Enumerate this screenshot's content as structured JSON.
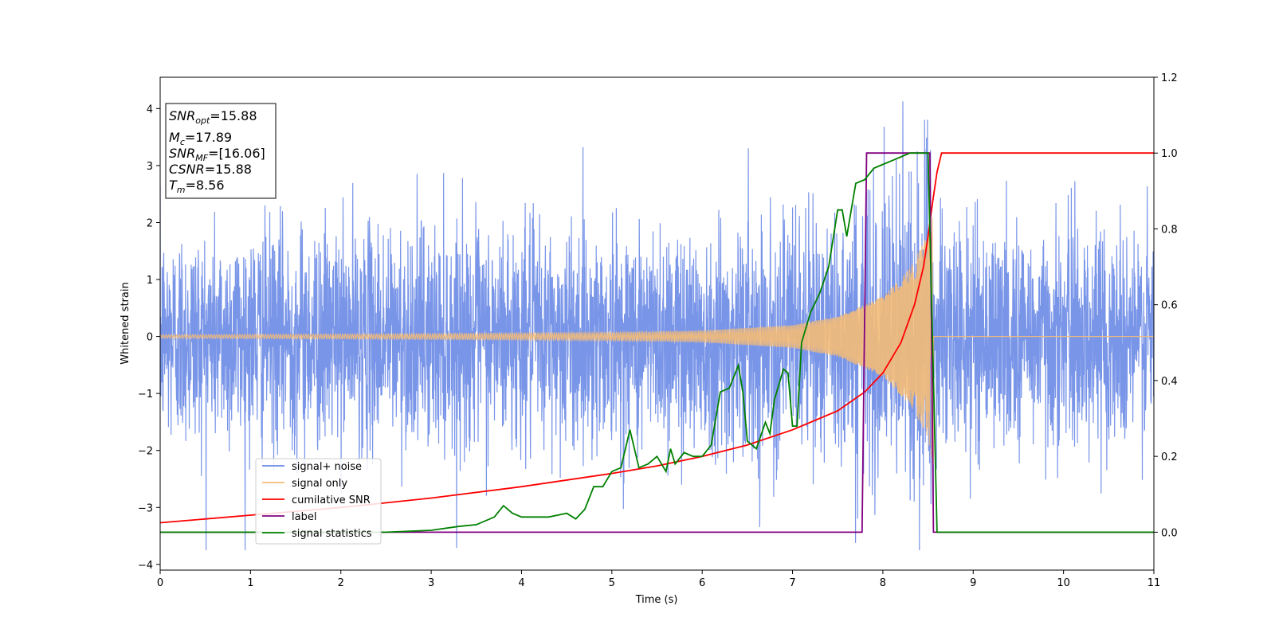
{
  "chart_data": {
    "type": "line",
    "xlabel": "Time (s)",
    "ylabel": "Whitened strain",
    "ylabel_right": "",
    "xlim": [
      0,
      11
    ],
    "ylim": [
      -4.1,
      4.55
    ],
    "ylim_right": [
      -0.1,
      1.2
    ],
    "x_ticks": [
      "0",
      "1",
      "2",
      "3",
      "4",
      "5",
      "6",
      "7",
      "8",
      "9",
      "10",
      "11"
    ],
    "y_ticks": [
      "−4",
      "−3",
      "−2",
      "−1",
      "0",
      "1",
      "2",
      "3",
      "4"
    ],
    "y_ticks_right": [
      "0.0",
      "0.2",
      "0.4",
      "0.6",
      "0.8",
      "1.0",
      "1.2"
    ],
    "legend_position": "lower-left",
    "grid": false,
    "info_box": {
      "snr_opt": {
        "base": "SNR",
        "sub": "opt",
        "value": "=15.88"
      },
      "mc": {
        "base": "M",
        "sub": "c",
        "value": "=17.89"
      },
      "snr_mf": {
        "base": "SNR",
        "sub": "MF",
        "value": "=[16.06]"
      },
      "csnr": {
        "base": "CSNR",
        "value": "=15.88"
      },
      "tm": {
        "base": "T",
        "sub": "m",
        "value": "=8.56"
      }
    },
    "series": [
      {
        "name": "signal+ noise",
        "axis": "left",
        "color": "#6a89e6",
        "style": "dense noise, approx. Gaussian, std 1.0, peaks to about ±4",
        "x_range": [
          0,
          11
        ],
        "envelope_points": [
          [
            0,
            1.6
          ],
          [
            5,
            1.6
          ],
          [
            7.0,
            1.7
          ],
          [
            7.8,
            1.9
          ],
          [
            8.3,
            2.1
          ],
          [
            8.5,
            2.3
          ],
          [
            8.56,
            1.6
          ],
          [
            11,
            1.6
          ]
        ]
      },
      {
        "name": "signal only",
        "axis": "left",
        "color": "#f4bb78",
        "style": "chirp oscillation, amplitude grows toward merger, zero after T_m",
        "amplitude_points": [
          [
            0,
            0.03
          ],
          [
            3,
            0.05
          ],
          [
            5,
            0.07
          ],
          [
            6,
            0.1
          ],
          [
            7,
            0.2
          ],
          [
            7.5,
            0.35
          ],
          [
            8,
            0.7
          ],
          [
            8.3,
            1.2
          ],
          [
            8.5,
            1.8
          ],
          [
            8.56,
            2.3
          ]
        ]
      },
      {
        "name": "cumilative SNR",
        "axis": "right",
        "color": "#ff0000",
        "x": [
          0,
          1,
          2,
          3,
          4,
          5,
          5.5,
          6,
          6.5,
          7,
          7.5,
          7.8,
          8,
          8.2,
          8.35,
          8.45,
          8.5,
          8.55,
          8.6,
          8.65,
          11
        ],
        "y": [
          0.025,
          0.045,
          0.065,
          0.09,
          0.12,
          0.155,
          0.175,
          0.2,
          0.23,
          0.27,
          0.32,
          0.37,
          0.42,
          0.5,
          0.6,
          0.7,
          0.78,
          0.87,
          0.95,
          1.0,
          1.0
        ]
      },
      {
        "name": "label",
        "axis": "right",
        "color": "#800080",
        "x": [
          0,
          7.77,
          7.82,
          8.52,
          8.56,
          11
        ],
        "y": [
          0,
          0,
          1,
          1,
          0,
          0
        ]
      },
      {
        "name": "signal statistics",
        "axis": "right",
        "color": "#008000",
        "x": [
          0,
          2,
          2.5,
          3.0,
          3.3,
          3.5,
          3.7,
          3.8,
          3.9,
          4.0,
          4.3,
          4.4,
          4.5,
          4.6,
          4.7,
          4.8,
          4.9,
          5.0,
          5.1,
          5.2,
          5.3,
          5.4,
          5.5,
          5.6,
          5.65,
          5.7,
          5.8,
          5.9,
          6.0,
          6.1,
          6.2,
          6.3,
          6.4,
          6.45,
          6.5,
          6.6,
          6.7,
          6.75,
          6.8,
          6.9,
          6.95,
          7.0,
          7.05,
          7.1,
          7.2,
          7.3,
          7.4,
          7.5,
          7.55,
          7.6,
          7.7,
          7.8,
          7.9,
          8.0,
          8.1,
          8.2,
          8.3,
          8.4,
          8.5,
          8.55,
          8.6,
          11
        ],
        "y": [
          0,
          0,
          0,
          0.005,
          0.015,
          0.02,
          0.04,
          0.07,
          0.05,
          0.04,
          0.04,
          0.045,
          0.05,
          0.035,
          0.06,
          0.12,
          0.12,
          0.16,
          0.17,
          0.27,
          0.17,
          0.18,
          0.2,
          0.16,
          0.22,
          0.18,
          0.21,
          0.2,
          0.2,
          0.23,
          0.37,
          0.38,
          0.44,
          0.37,
          0.24,
          0.22,
          0.29,
          0.26,
          0.35,
          0.43,
          0.42,
          0.28,
          0.28,
          0.5,
          0.58,
          0.63,
          0.7,
          0.85,
          0.85,
          0.78,
          0.92,
          0.93,
          0.96,
          0.97,
          0.98,
          0.99,
          1.0,
          1.0,
          1.0,
          0.5,
          0.0,
          0.0
        ]
      }
    ]
  }
}
